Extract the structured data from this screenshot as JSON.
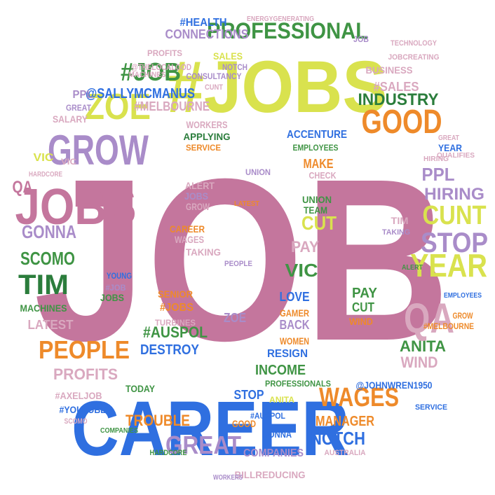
{
  "palette": {
    "pink": "#c4769d",
    "blue": "#2f6fe0",
    "lime": "#d9e24e",
    "green": "#3f9444",
    "orange": "#ee8a2a",
    "purple": "#a98cc9",
    "lightpink": "#d9a8bf",
    "darkgreen": "#2b7d3c"
  },
  "words": [
    {
      "text": "JOB",
      "color": "pink"
    },
    {
      "text": "CAREER",
      "color": "blue"
    },
    {
      "text": "#JOBS",
      "color": "lime"
    },
    {
      "text": "JOBS",
      "color": "pink"
    },
    {
      "text": "GROW",
      "color": "purple"
    },
    {
      "text": "ZOE",
      "color": "lime"
    },
    {
      "text": "#JOB",
      "color": "green"
    },
    {
      "text": "@SALLYMCMANUS",
      "color": "blue"
    },
    {
      "text": "PROFESSIONAL",
      "color": "green"
    },
    {
      "text": "CONNECTIONS",
      "color": "purple"
    },
    {
      "text": "#HEALTH",
      "color": "blue"
    },
    {
      "text": "GOOD",
      "color": "orange"
    },
    {
      "text": "INDUSTRY",
      "color": "darkgreen"
    },
    {
      "text": "#SALES",
      "color": "lightpink"
    },
    {
      "text": "#MELBOURNE",
      "color": "lightpink"
    },
    {
      "text": "GONNA",
      "color": "purple"
    },
    {
      "text": "SCOMO",
      "color": "green"
    },
    {
      "text": "TIM",
      "color": "darkgreen"
    },
    {
      "text": "MACHINES",
      "color": "green"
    },
    {
      "text": "QA",
      "color": "pink"
    },
    {
      "text": "VIC",
      "color": "lime"
    },
    {
      "text": "PPL",
      "color": "purple"
    },
    {
      "text": "SALARY",
      "color": "lightpink"
    },
    {
      "text": "GREAT",
      "color": "purple"
    },
    {
      "text": "LATEST",
      "color": "lightpink"
    },
    {
      "text": "PEOPLE",
      "color": "orange"
    },
    {
      "text": "PROFITS",
      "color": "lightpink"
    },
    {
      "text": "#AXELJOB",
      "color": "lightpink"
    },
    {
      "text": "#YOUTUBE",
      "color": "blue"
    },
    {
      "text": "SCOMO",
      "color": "lightpink"
    },
    {
      "text": "TROUBLE",
      "color": "orange"
    },
    {
      "text": "GREAT",
      "color": "purple"
    },
    {
      "text": "COMPANIES",
      "color": "purple"
    },
    {
      "text": "BILLREDUCING",
      "color": "lightpink"
    },
    {
      "text": "NOTCH",
      "color": "blue"
    },
    {
      "text": "MANAGER",
      "color": "orange"
    },
    {
      "text": "WAGES",
      "color": "orange"
    },
    {
      "text": "@JOHNWREN1950",
      "color": "blue"
    },
    {
      "text": "WIND",
      "color": "lightpink"
    },
    {
      "text": "ANITA",
      "color": "green"
    },
    {
      "text": "QA",
      "color": "lightpink"
    },
    {
      "text": "YEAR",
      "color": "lime"
    },
    {
      "text": "STOP",
      "color": "purple"
    },
    {
      "text": "CUNT",
      "color": "lime"
    },
    {
      "text": "HIRING",
      "color": "purple"
    },
    {
      "text": "PPL",
      "color": "purple"
    },
    {
      "text": "YEAR",
      "color": "blue"
    },
    {
      "text": "#AUSPOL",
      "color": "green"
    },
    {
      "text": "DESTROY",
      "color": "blue"
    },
    {
      "text": "INCOME",
      "color": "green"
    },
    {
      "text": "RESIGN",
      "color": "blue"
    },
    {
      "text": "WOMEN",
      "color": "orange"
    },
    {
      "text": "BACK",
      "color": "purple"
    },
    {
      "text": "GAMER",
      "color": "orange"
    },
    {
      "text": "LOVE",
      "color": "blue"
    },
    {
      "text": "VIC",
      "color": "green"
    },
    {
      "text": "PAY",
      "color": "lightpink"
    },
    {
      "text": "CUT",
      "color": "lime"
    },
    {
      "text": "TEAM",
      "color": "green"
    },
    {
      "text": "UNION",
      "color": "green"
    },
    {
      "text": "MAKE",
      "color": "orange"
    },
    {
      "text": "ACCENTURE",
      "color": "blue"
    },
    {
      "text": "EMPLOYEES",
      "color": "green"
    },
    {
      "text": "CHECK",
      "color": "lightpink"
    },
    {
      "text": "APPLYING",
      "color": "darkgreen"
    },
    {
      "text": "SERVICE",
      "color": "orange"
    },
    {
      "text": "WORKERS",
      "color": "lightpink"
    },
    {
      "text": "SALES",
      "color": "lime"
    },
    {
      "text": "NOTCH",
      "color": "purple"
    },
    {
      "text": "CONSULTANCY",
      "color": "purple"
    },
    {
      "text": "CUNT",
      "color": "lightpink"
    },
    {
      "text": "JOB",
      "color": "purple"
    },
    {
      "text": "#JOBS",
      "color": "orange"
    },
    {
      "text": "ZOE",
      "color": "purple"
    },
    {
      "text": "STOP",
      "color": "blue"
    },
    {
      "text": "ANITA",
      "color": "lime"
    },
    {
      "text": "GOOD",
      "color": "orange"
    },
    {
      "text": "GONNA",
      "color": "blue"
    },
    {
      "text": "TODAY",
      "color": "green"
    },
    {
      "text": "PAY",
      "color": "green"
    },
    {
      "text": "CUT",
      "color": "green"
    },
    {
      "text": "WIND",
      "color": "orange"
    },
    {
      "text": "ALERT",
      "color": "lightpink"
    },
    {
      "text": "JOBS",
      "color": "purple"
    },
    {
      "text": "GROW",
      "color": "lightpink"
    },
    {
      "text": "CAREER",
      "color": "orange"
    },
    {
      "text": "WAGES",
      "color": "lightpink"
    },
    {
      "text": "TAKING",
      "color": "lightpink"
    },
    {
      "text": "SENIOR",
      "color": "orange"
    },
    {
      "text": "TURBINES",
      "color": "lightpink"
    },
    {
      "text": "JOBS",
      "color": "green"
    },
    {
      "text": "YOUNG",
      "color": "blue"
    },
    {
      "text": "#JOB",
      "color": "purple"
    },
    {
      "text": "LATEST",
      "color": "orange"
    },
    {
      "text": "PEOPLE",
      "color": "purple"
    },
    {
      "text": "UNION",
      "color": "purple"
    },
    {
      "text": "TIM",
      "color": "lightpink"
    },
    {
      "text": "TAKING",
      "color": "purple"
    },
    {
      "text": "BUSINESS",
      "color": "lightpink"
    },
    {
      "text": "PROFITS",
      "color": "lightpink"
    },
    {
      "text": "TECHNOLOGY",
      "color": "lightpink"
    },
    {
      "text": "JOBCREATING",
      "color": "lightpink"
    },
    {
      "text": "ENERGYGENERATING",
      "color": "lightpink"
    },
    {
      "text": "@THELOCALGOD",
      "color": "lightpink"
    },
    {
      "text": "MACHINES",
      "color": "lightpink"
    },
    {
      "text": "#MELBOURNE",
      "color": "orange"
    },
    {
      "text": "PROFESSIONALS",
      "color": "green"
    },
    {
      "text": "AUSTRALIA",
      "color": "lightpink"
    },
    {
      "text": "#AUSPOL",
      "color": "blue"
    },
    {
      "text": "HARDCORE",
      "color": "green"
    },
    {
      "text": "WORKERS",
      "color": "purple"
    },
    {
      "text": "COMPANIES",
      "color": "green"
    },
    {
      "text": "SERVICE",
      "color": "blue"
    },
    {
      "text": "GROW",
      "color": "orange"
    },
    {
      "text": "EMPLOYEES",
      "color": "blue"
    },
    {
      "text": "QUALIFIES",
      "color": "lightpink"
    },
    {
      "text": "HIRING",
      "color": "lightpink"
    },
    {
      "text": "GREAT",
      "color": "lightpink"
    },
    {
      "text": "ALERT",
      "color": "green"
    },
    {
      "text": "VIC",
      "color": "lightpink"
    },
    {
      "text": "HARDCORE",
      "color": "lightpink"
    }
  ]
}
